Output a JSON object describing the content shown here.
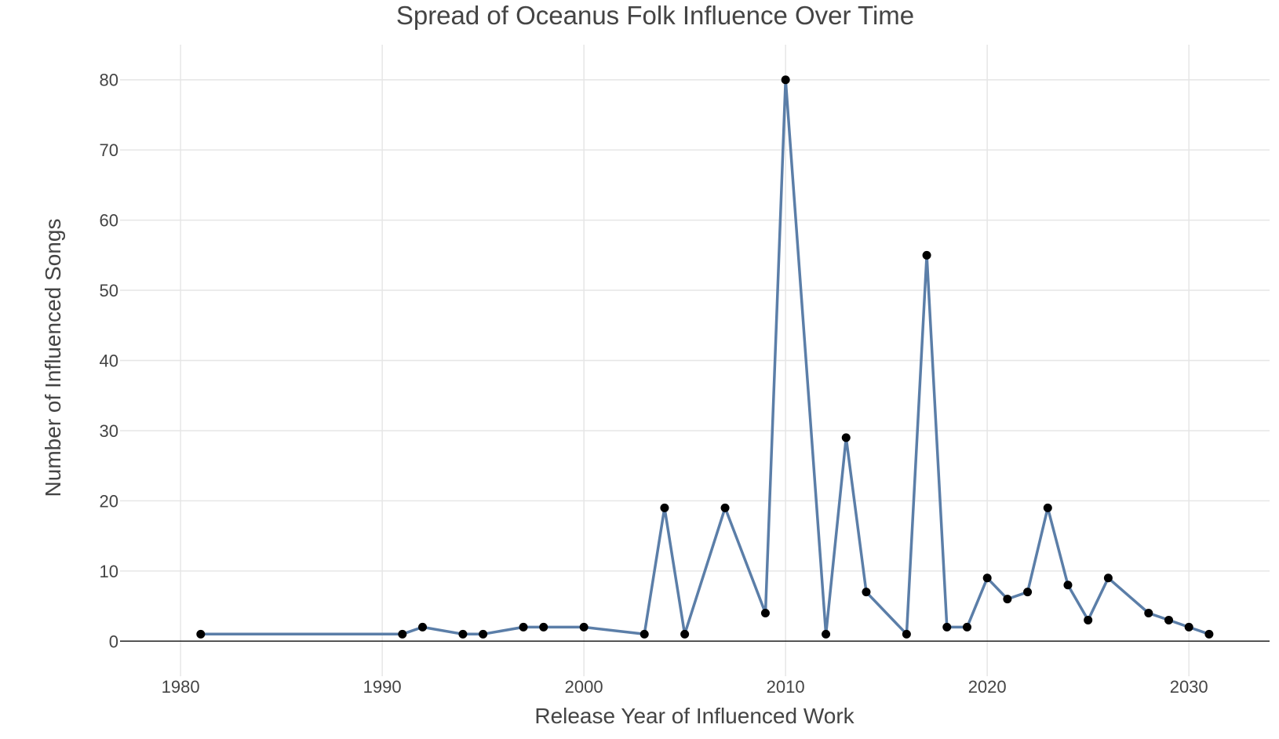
{
  "chart_data": {
    "type": "line",
    "title": "Spread of Oceanus Folk Influence Over Time",
    "xlabel": "Release Year of Influenced Work",
    "ylabel": "Number of Influenced Songs",
    "xlim": [
      1977,
      2034
    ],
    "ylim": [
      -5,
      85
    ],
    "xticks": [
      1980,
      1990,
      2000,
      2010,
      2020,
      2030
    ],
    "yticks": [
      0,
      10,
      20,
      30,
      40,
      50,
      60,
      70,
      80
    ],
    "grid": true,
    "legend": "none",
    "line_color": "#5b7ea8",
    "marker_color": "#000000",
    "series": [
      {
        "x": [
          1981,
          1991,
          1992,
          1994,
          1995,
          1997,
          1998,
          2000,
          2003,
          2004,
          2005,
          2007,
          2009,
          2010,
          2012,
          2013,
          2014,
          2016,
          2017,
          2018,
          2019,
          2020,
          2021,
          2022,
          2023,
          2024,
          2025,
          2026,
          2028,
          2029,
          2030,
          2031
        ],
        "y": [
          1,
          1,
          2,
          1,
          1,
          2,
          2,
          2,
          1,
          19,
          1,
          19,
          4,
          80,
          1,
          29,
          7,
          1,
          55,
          2,
          2,
          9,
          6,
          7,
          19,
          8,
          3,
          9,
          4,
          3,
          2,
          1
        ]
      }
    ]
  }
}
